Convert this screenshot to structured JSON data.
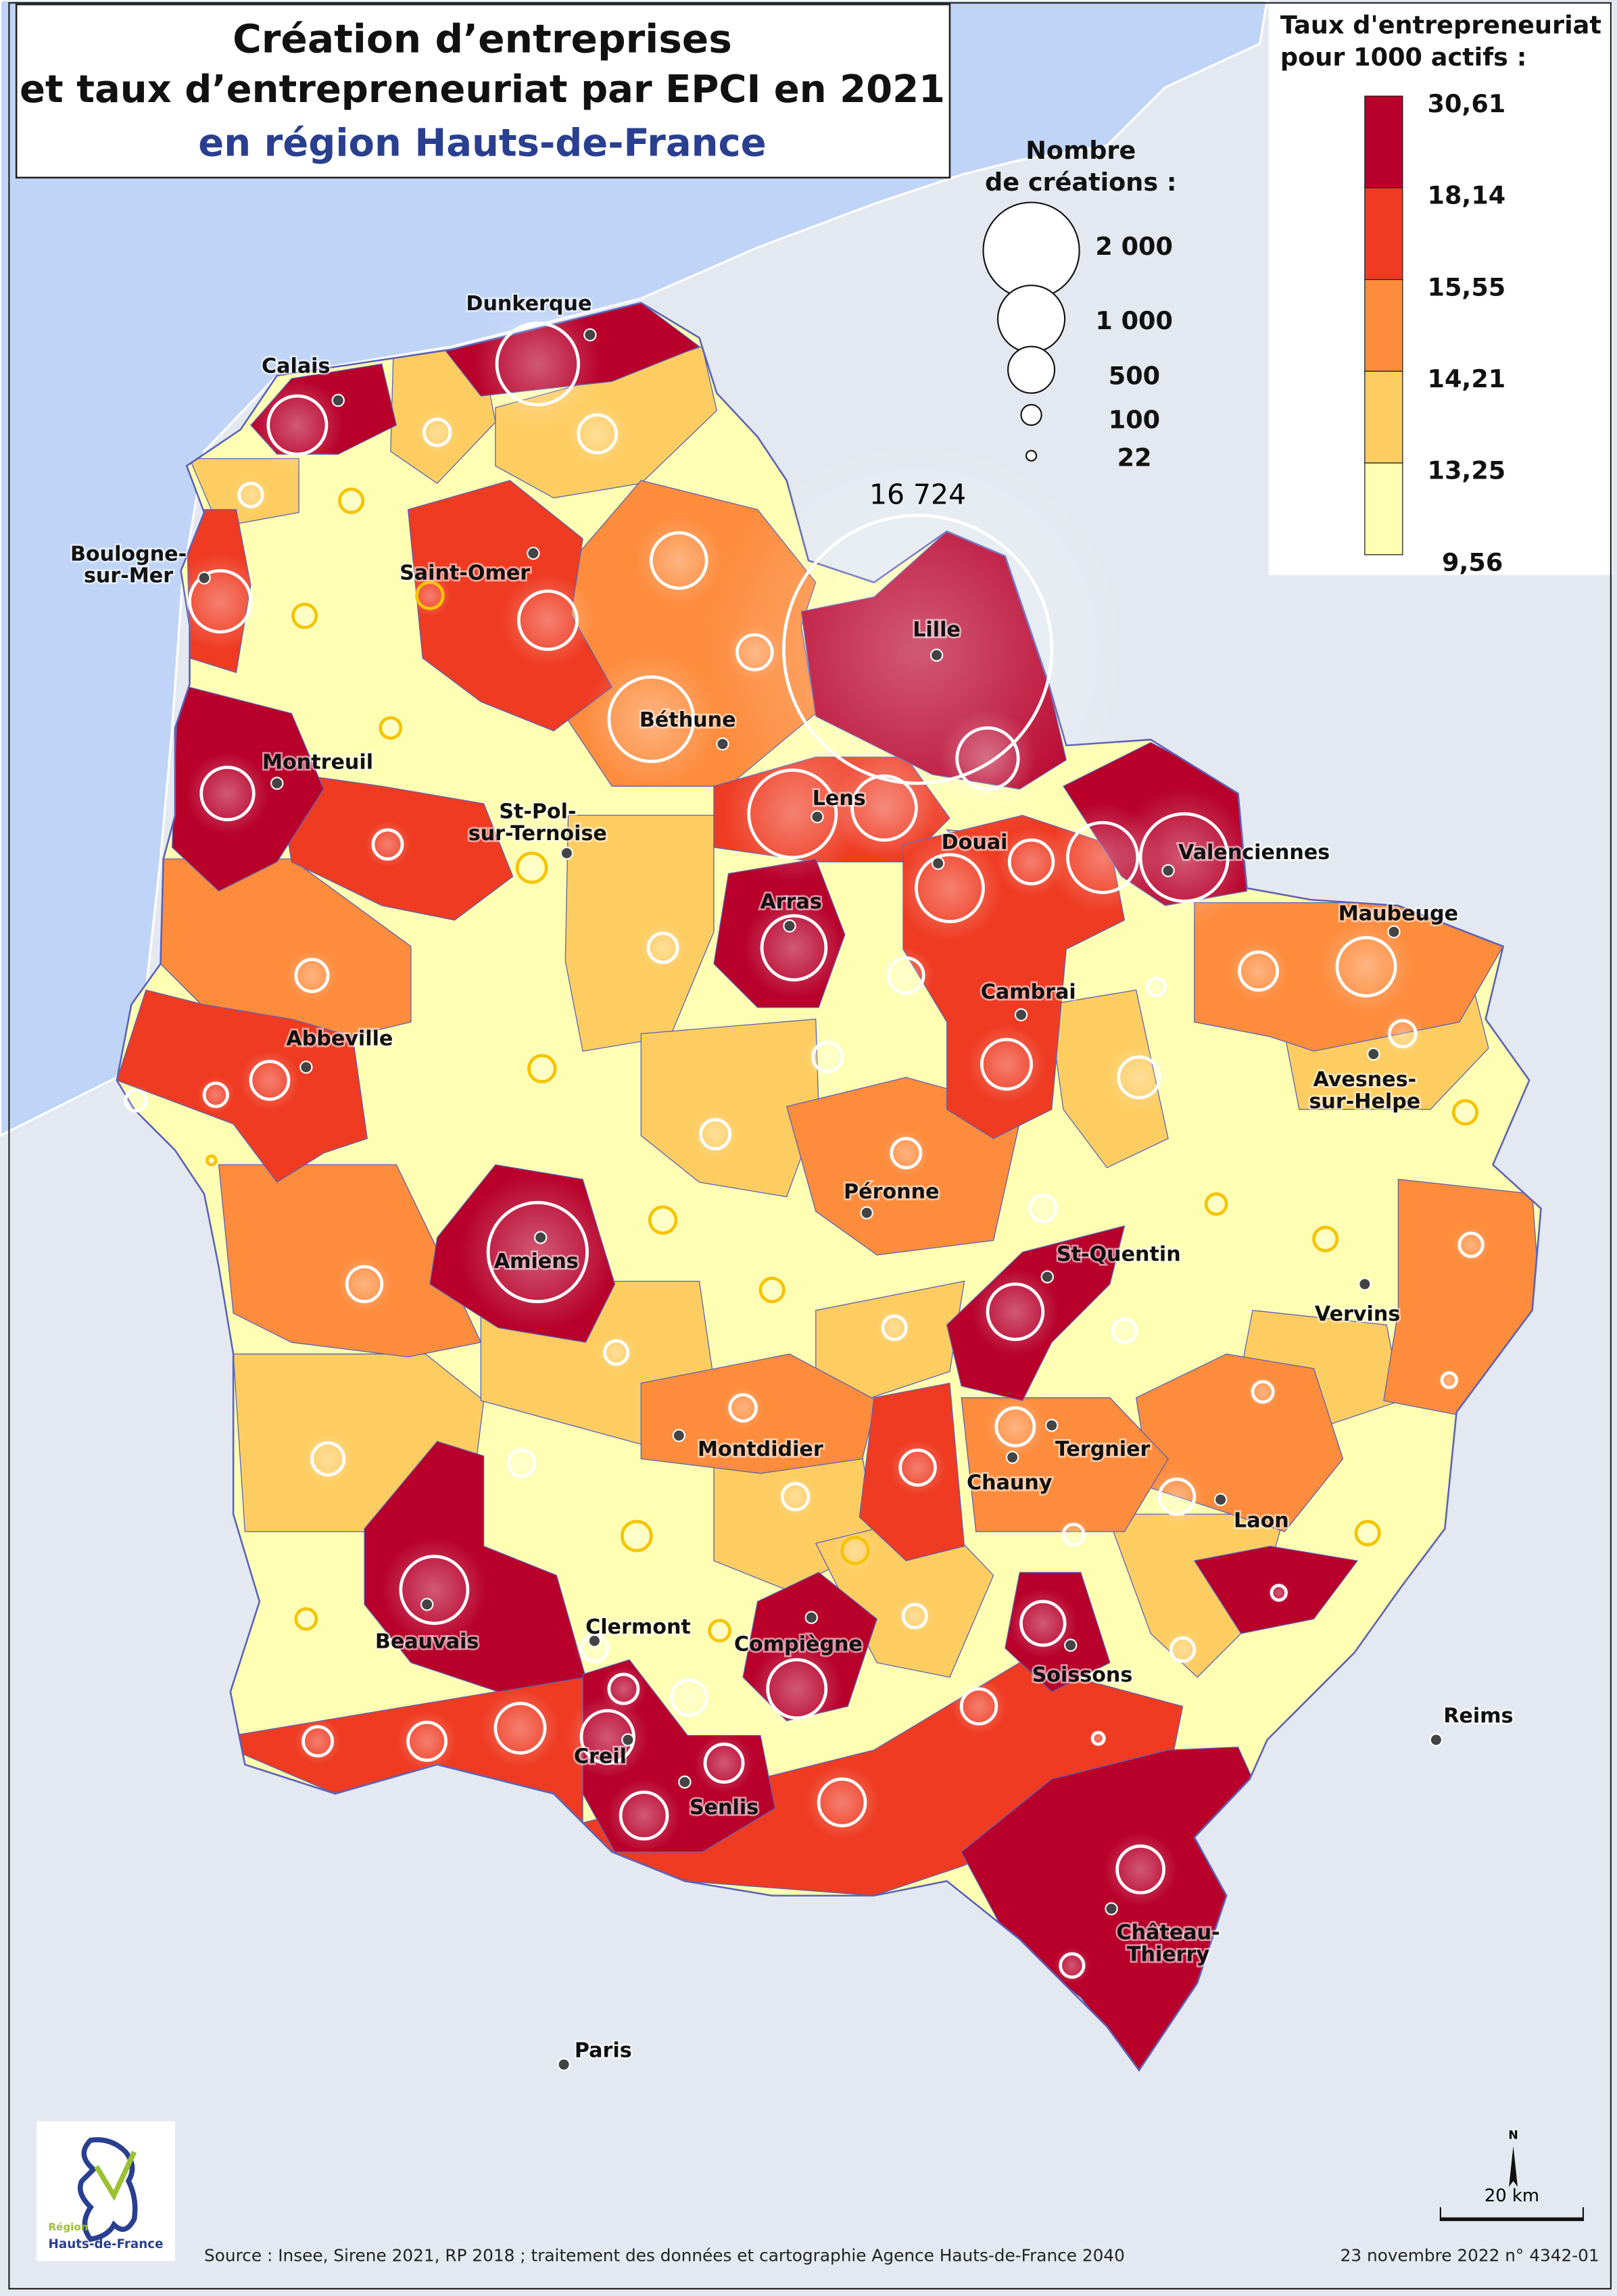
{
  "title": {
    "line1": "Création d’entreprises",
    "line2": "et taux d’entrepreneuriat par EPCI en 2021",
    "line3": "en région Hauts-de-France"
  },
  "rate_legend": {
    "title_line1": "Taux d'entrepreneuriat",
    "title_line2": "pour 1000 actifs :",
    "breaks": [
      "30,61",
      "18,14",
      "15,55",
      "14,21",
      "13,25",
      "9,56"
    ],
    "colors": [
      "#b8002a",
      "#ef3b22",
      "#fd8c3d",
      "#fecd62",
      "#feffb2"
    ]
  },
  "size_legend": {
    "title_line1": "Nombre",
    "title_line2": "de créations :",
    "values": [
      "2 000",
      "1 000",
      "500",
      "100",
      "22"
    ]
  },
  "max_label": "16 724",
  "cities": [
    {
      "name": "Dunkerque"
    },
    {
      "name": "Calais"
    },
    {
      "name": "Boulogne-",
      "name2": "sur-Mer"
    },
    {
      "name": "Saint-Omer"
    },
    {
      "name": "Lille"
    },
    {
      "name": "Béthune"
    },
    {
      "name": "Montreuil"
    },
    {
      "name": "St-Pol-",
      "name2": "sur-Ternoise"
    },
    {
      "name": "Lens"
    },
    {
      "name": "Douai"
    },
    {
      "name": "Valenciennes"
    },
    {
      "name": "Arras"
    },
    {
      "name": "Maubeuge"
    },
    {
      "name": "Cambrai"
    },
    {
      "name": "Abbeville"
    },
    {
      "name": "Avesnes-",
      "name2": "sur-Helpe"
    },
    {
      "name": "Péronne"
    },
    {
      "name": "Amiens"
    },
    {
      "name": "St-Quentin"
    },
    {
      "name": "Vervins"
    },
    {
      "name": "Montdidier"
    },
    {
      "name": "Tergnier"
    },
    {
      "name": "Chauny"
    },
    {
      "name": "Laon"
    },
    {
      "name": "Beauvais"
    },
    {
      "name": "Clermont"
    },
    {
      "name": "Compiègne"
    },
    {
      "name": "Soissons"
    },
    {
      "name": "Creil"
    },
    {
      "name": "Senlis"
    },
    {
      "name": "Château-",
      "name2": "Thierry"
    },
    {
      "name": "Reims"
    },
    {
      "name": "Paris"
    }
  ],
  "logo": {
    "line1": "Région",
    "line2": "Hauts-de-France"
  },
  "north_label": "N",
  "scale_label": "20 km",
  "source": "Source : Insee, Sirene 2021, RP 2018 ; traitement des données et cartographie Agence Hauts-de-France 2040",
  "date_ref": "23 novembre 2022 n° 4342-01",
  "colors": {
    "sea": "#c0d4f7",
    "land": "#e4e9f1",
    "title_blue": "#2a3f8f"
  }
}
